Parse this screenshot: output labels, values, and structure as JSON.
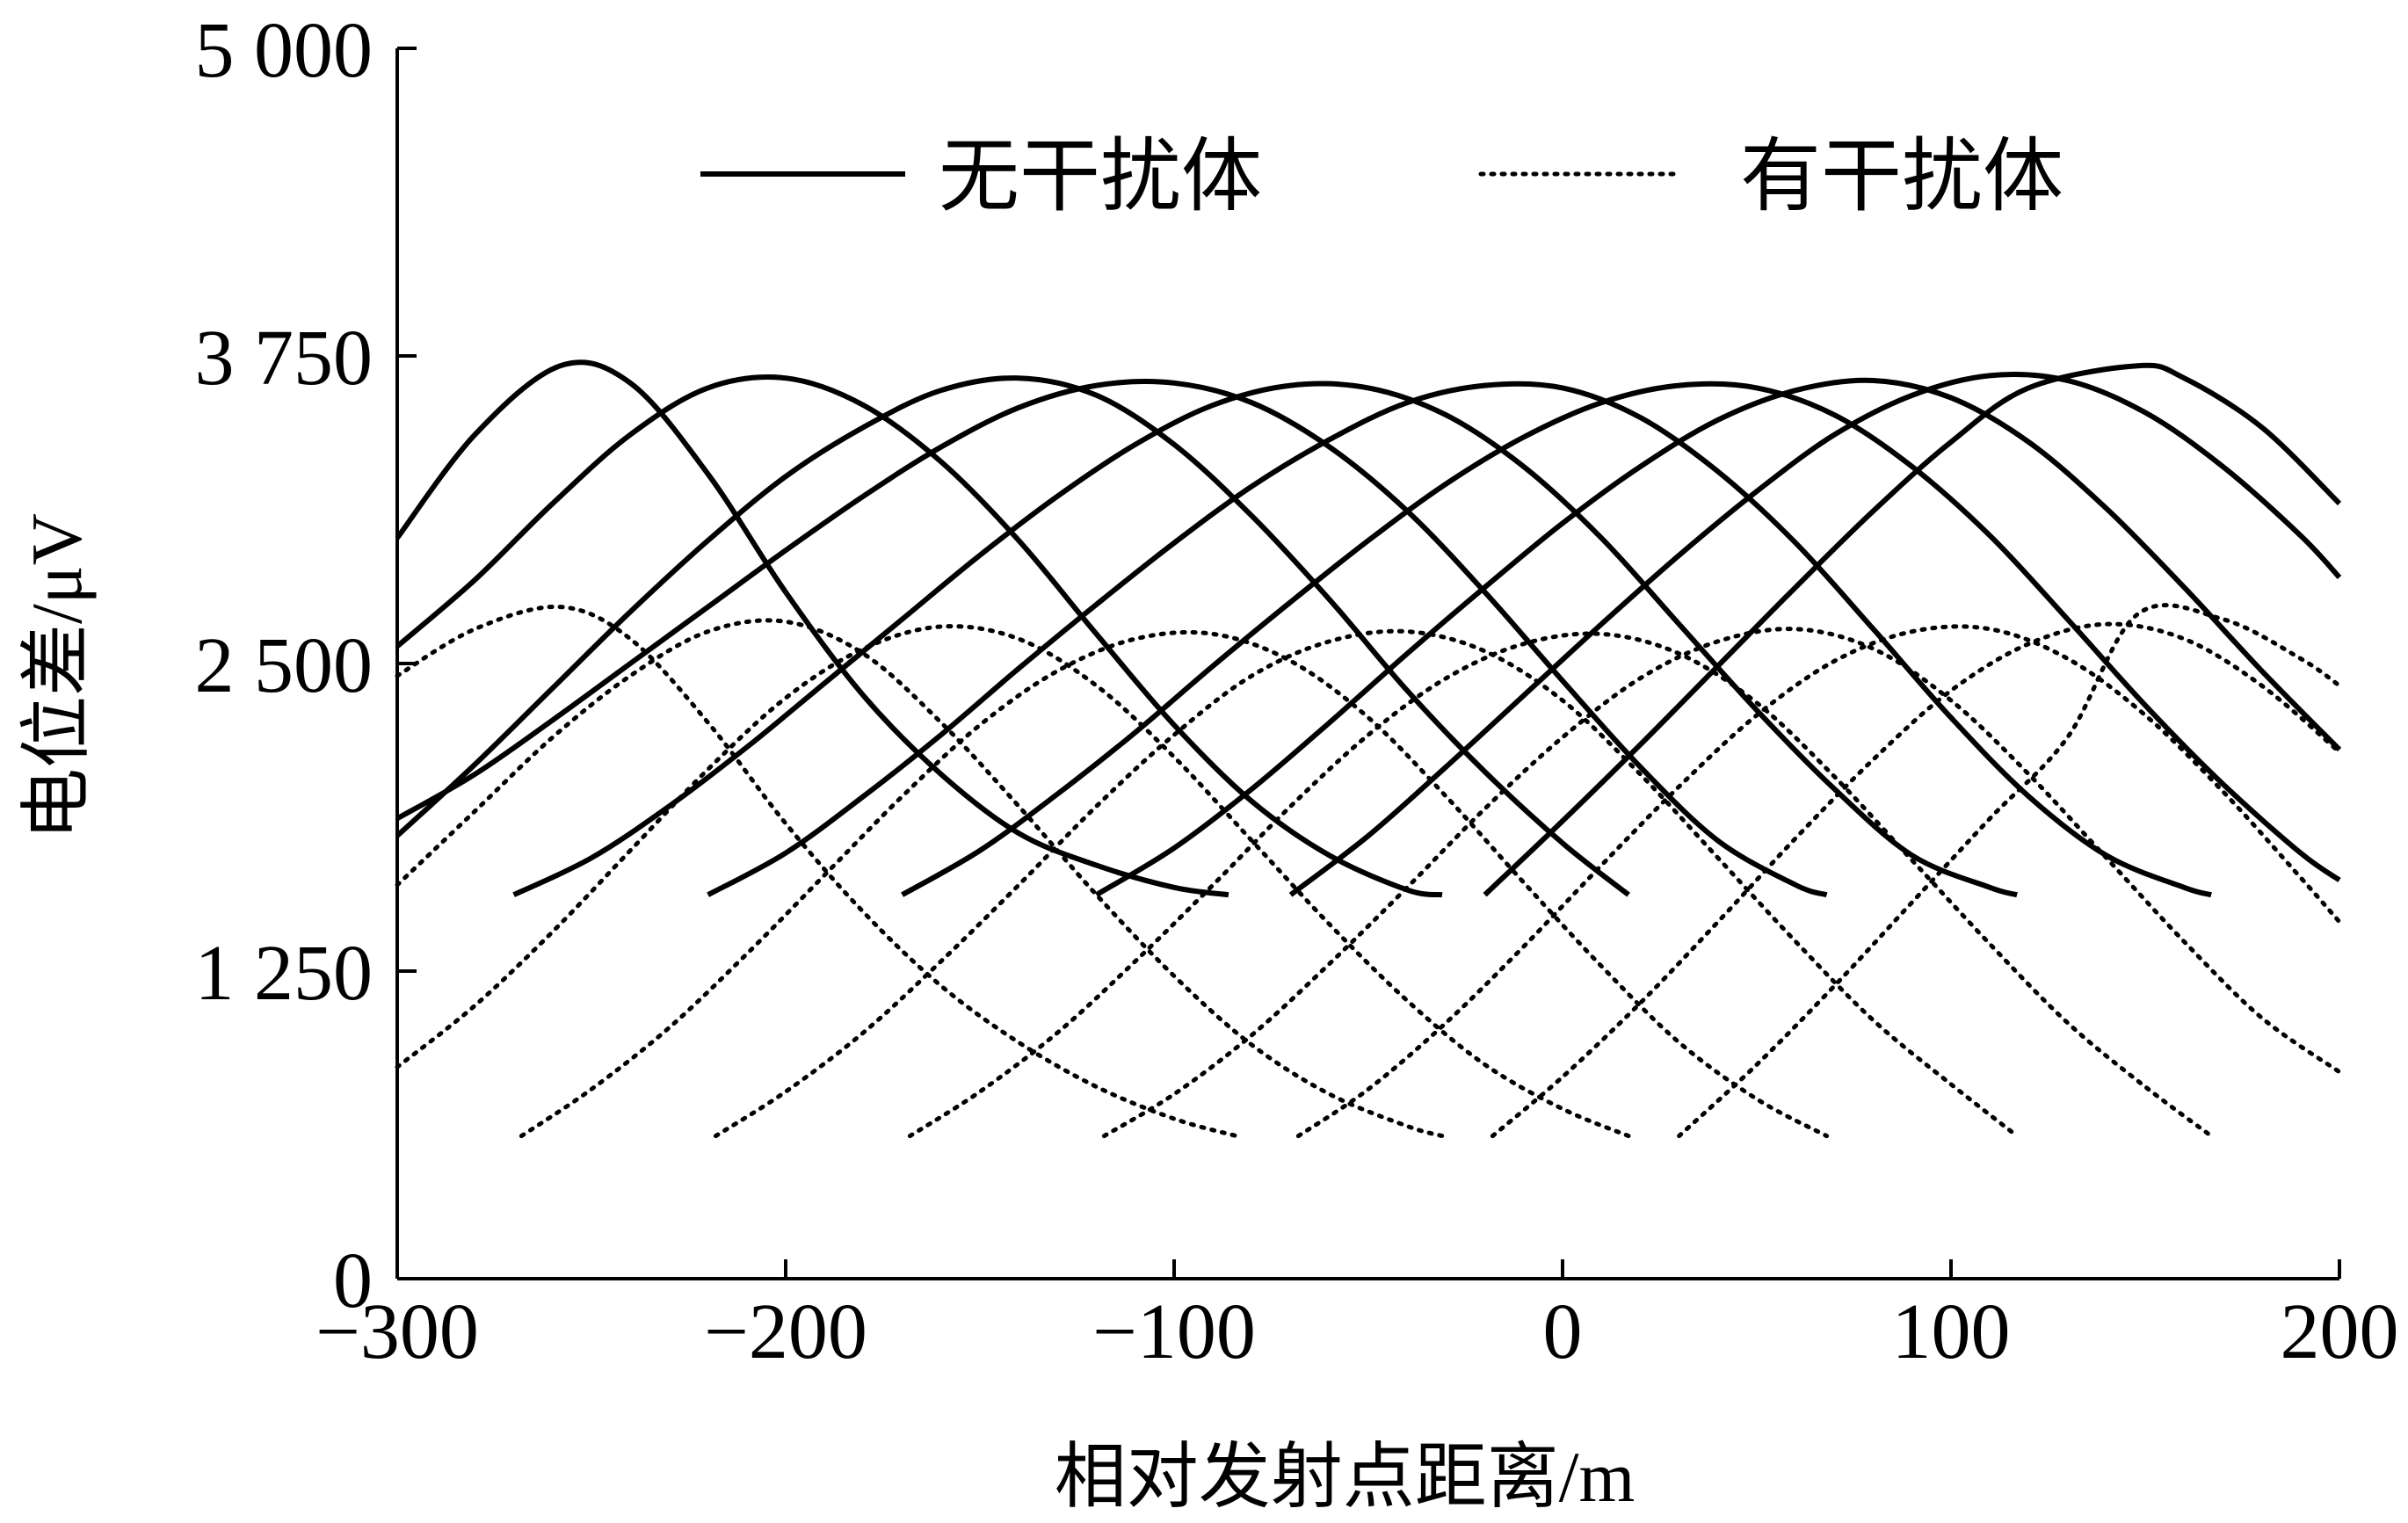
{
  "chart_data": {
    "type": "line",
    "title": "",
    "xlabel": "相对发射点距离/m",
    "ylabel": "电位差/μV",
    "xlim": [
      -300,
      200
    ],
    "ylim": [
      0,
      5000
    ],
    "xticks": [
      -300,
      -200,
      -100,
      0,
      100,
      200
    ],
    "xtick_labels": [
      "−300",
      "−200",
      "−100",
      "0",
      "100",
      "200"
    ],
    "yticks": [
      0,
      1250,
      2500,
      3750,
      5000
    ],
    "ytick_labels": [
      "0",
      "1 250",
      "2 500",
      "3 750",
      "5 000"
    ],
    "grid": false,
    "legend_position": "top-center",
    "legend": [
      {
        "label": "无干扰体",
        "style": "solid"
      },
      {
        "label": "有干扰体",
        "style": "dotted"
      }
    ],
    "series": [
      {
        "name": "无干扰体",
        "style": "solid",
        "x": [
          -300,
          -280,
          -258,
          -240,
          -220,
          -200,
          -180,
          -160,
          -140,
          -120,
          -100,
          -86
        ],
        "y": [
          3010,
          3430,
          3710,
          3640,
          3270,
          2790,
          2370,
          2050,
          1810,
          1680,
          1590,
          1560
        ]
      },
      {
        "name": "无干扰体",
        "style": "solid",
        "x": [
          -300,
          -280,
          -260,
          -240,
          -220,
          -200,
          -180,
          -160,
          -140,
          -120,
          -100,
          -80,
          -60,
          -40,
          -31
        ],
        "y": [
          2570,
          2840,
          3150,
          3430,
          3620,
          3660,
          3550,
          3320,
          3000,
          2620,
          2250,
          1940,
          1720,
          1580,
          1560
        ]
      },
      {
        "name": "无干扰体",
        "style": "solid",
        "x": [
          -300,
          -280,
          -260,
          -240,
          -220,
          -200,
          -180,
          -160,
          -140,
          -120,
          -100,
          -80,
          -60,
          -40,
          -20,
          0,
          17
        ],
        "y": [
          1800,
          2090,
          2400,
          2710,
          3000,
          3260,
          3460,
          3610,
          3660,
          3590,
          3390,
          3100,
          2760,
          2390,
          2060,
          1770,
          1560
        ]
      },
      {
        "name": "无干扰体",
        "style": "solid",
        "x": [
          -300,
          -280,
          -260,
          -240,
          -220,
          -200,
          -180,
          -160,
          -140,
          -120,
          -100,
          -80,
          -60,
          -40,
          -20,
          0,
          20,
          40,
          60,
          68
        ],
        "y": [
          1870,
          2050,
          2270,
          2500,
          2730,
          2960,
          3180,
          3380,
          3540,
          3630,
          3640,
          3560,
          3380,
          3120,
          2790,
          2430,
          2080,
          1780,
          1600,
          1560
        ]
      },
      {
        "name": "无干扰体",
        "style": "solid",
        "x": [
          -270,
          -250,
          -230,
          -210,
          -190,
          -170,
          -150,
          -130,
          -110,
          -90,
          -70,
          -50,
          -30,
          -10,
          10,
          30,
          50,
          70,
          90,
          110,
          117
        ],
        "y": [
          1560,
          1710,
          1920,
          2160,
          2420,
          2680,
          2940,
          3180,
          3390,
          3550,
          3630,
          3620,
          3510,
          3300,
          3010,
          2660,
          2310,
          1990,
          1720,
          1590,
          1560
        ]
      },
      {
        "name": "无干扰体",
        "style": "solid",
        "x": [
          -220,
          -200,
          -180,
          -160,
          -140,
          -120,
          -100,
          -80,
          -60,
          -40,
          -20,
          0,
          20,
          40,
          60,
          80,
          100,
          120,
          140,
          160,
          167
        ],
        "y": [
          1560,
          1730,
          1960,
          2210,
          2480,
          2740,
          2990,
          3220,
          3410,
          3560,
          3630,
          3620,
          3500,
          3280,
          2990,
          2640,
          2280,
          1960,
          1720,
          1590,
          1560
        ]
      },
      {
        "name": "无干扰体",
        "style": "solid",
        "x": [
          -170,
          -150,
          -130,
          -110,
          -90,
          -70,
          -50,
          -30,
          -10,
          10,
          30,
          50,
          70,
          90,
          110,
          130,
          150,
          170,
          190,
          200
        ],
        "y": [
          1560,
          1740,
          1970,
          2220,
          2490,
          2750,
          3000,
          3230,
          3420,
          3560,
          3630,
          3620,
          3510,
          3300,
          3020,
          2680,
          2330,
          2010,
          1730,
          1620
        ]
      },
      {
        "name": "无干扰体",
        "style": "solid",
        "x": [
          -120,
          -100,
          -80,
          -60,
          -40,
          -20,
          0,
          20,
          40,
          60,
          80,
          100,
          120,
          140,
          160,
          180,
          200
        ],
        "y": [
          1560,
          1750,
          1990,
          2260,
          2540,
          2810,
          3070,
          3300,
          3490,
          3610,
          3650,
          3580,
          3400,
          3130,
          2810,
          2470,
          2150
        ]
      },
      {
        "name": "无干扰体",
        "style": "solid",
        "x": [
          -70,
          -50,
          -30,
          -10,
          10,
          30,
          50,
          70,
          90,
          110,
          130,
          150,
          170,
          190,
          200
        ],
        "y": [
          1560,
          1800,
          2080,
          2370,
          2660,
          2940,
          3200,
          3430,
          3590,
          3670,
          3650,
          3520,
          3300,
          3020,
          2850
        ]
      },
      {
        "name": "无干扰体",
        "style": "solid",
        "x": [
          -20,
          0,
          20,
          40,
          60,
          80,
          100,
          120,
          148,
          160,
          180,
          200
        ],
        "y": [
          1560,
          1860,
          2170,
          2490,
          2810,
          3120,
          3400,
          3620,
          3710,
          3660,
          3460,
          3150
        ]
      },
      {
        "name": "有干扰体",
        "style": "dotted",
        "x": [
          -300,
          -280,
          -258,
          -240,
          -220,
          -200,
          -180,
          -160,
          -140,
          -120,
          -100,
          -84
        ],
        "y": [
          2450,
          2640,
          2730,
          2600,
          2260,
          1850,
          1490,
          1190,
          960,
          780,
          650,
          580
        ]
      },
      {
        "name": "有干扰体",
        "style": "dotted",
        "x": [
          -300,
          -280,
          -260,
          -240,
          -220,
          -200,
          -180,
          -160,
          -140,
          -120,
          -100,
          -80,
          -60,
          -40,
          -31
        ],
        "y": [
          1600,
          1900,
          2200,
          2450,
          2630,
          2670,
          2540,
          2260,
          1920,
          1560,
          1230,
          950,
          750,
          620,
          580
        ]
      },
      {
        "name": "有干扰体",
        "style": "dotted",
        "x": [
          -300,
          -280,
          -260,
          -240,
          -220,
          -200,
          -180,
          -160,
          -140,
          -120,
          -100,
          -80,
          -60,
          -40,
          -20,
          0,
          17
        ],
        "y": [
          860,
          1110,
          1410,
          1740,
          2070,
          2360,
          2560,
          2650,
          2600,
          2410,
          2120,
          1780,
          1440,
          1130,
          870,
          690,
          580
        ]
      },
      {
        "name": "有干扰体",
        "style": "dotted",
        "x": [
          -268,
          -250,
          -230,
          -210,
          -190,
          -170,
          -150,
          -130,
          -110,
          -90,
          -70,
          -50,
          -30,
          -10,
          10,
          30,
          50,
          68
        ],
        "y": [
          580,
          770,
          1020,
          1320,
          1640,
          1960,
          2250,
          2470,
          2600,
          2620,
          2510,
          2280,
          1960,
          1610,
          1270,
          960,
          730,
          580
        ]
      },
      {
        "name": "有干扰体",
        "style": "dotted",
        "x": [
          -218,
          -200,
          -180,
          -160,
          -140,
          -120,
          -100,
          -80,
          -60,
          -40,
          -20,
          0,
          20,
          40,
          60,
          80,
          100,
          117
        ],
        "y": [
          580,
          760,
          1000,
          1290,
          1600,
          1920,
          2210,
          2450,
          2590,
          2630,
          2550,
          2350,
          2050,
          1710,
          1370,
          1050,
          790,
          580
        ]
      },
      {
        "name": "有干扰体",
        "style": "dotted",
        "x": [
          -168,
          -150,
          -130,
          -110,
          -90,
          -70,
          -50,
          -30,
          -10,
          10,
          30,
          50,
          70,
          90,
          110,
          130,
          150,
          167
        ],
        "y": [
          580,
          760,
          1000,
          1290,
          1600,
          1920,
          2210,
          2440,
          2580,
          2620,
          2540,
          2340,
          2040,
          1700,
          1360,
          1040,
          780,
          580
        ]
      },
      {
        "name": "有干扰体",
        "style": "dotted",
        "x": [
          -118,
          -100,
          -80,
          -60,
          -40,
          -20,
          0,
          20,
          40,
          60,
          80,
          100,
          120,
          140,
          160,
          180,
          200
        ],
        "y": [
          580,
          750,
          990,
          1280,
          1590,
          1910,
          2200,
          2440,
          2590,
          2640,
          2560,
          2350,
          2050,
          1710,
          1370,
          1060,
          840
        ]
      },
      {
        "name": "有干扰体",
        "style": "dotted",
        "x": [
          -68,
          -50,
          -30,
          -10,
          10,
          30,
          50,
          70,
          90,
          110,
          130,
          150,
          170,
          190,
          200
        ],
        "y": [
          580,
          770,
          1040,
          1350,
          1680,
          2000,
          2290,
          2510,
          2630,
          2640,
          2520,
          2290,
          1980,
          1630,
          1450
        ]
      },
      {
        "name": "有干扰体",
        "style": "dotted",
        "x": [
          -18,
          0,
          20,
          40,
          60,
          80,
          100,
          120,
          140,
          160,
          180,
          200
        ],
        "y": [
          580,
          820,
          1120,
          1450,
          1790,
          2110,
          2390,
          2580,
          2660,
          2600,
          2410,
          2140
        ]
      },
      {
        "name": "有干扰体",
        "style": "dotted",
        "x": [
          30,
          50,
          70,
          90,
          110,
          130,
          148,
          170,
          190,
          200
        ],
        "y": [
          580,
          870,
          1190,
          1530,
          1870,
          2200,
          2700,
          2680,
          2520,
          2410
        ]
      }
    ]
  }
}
